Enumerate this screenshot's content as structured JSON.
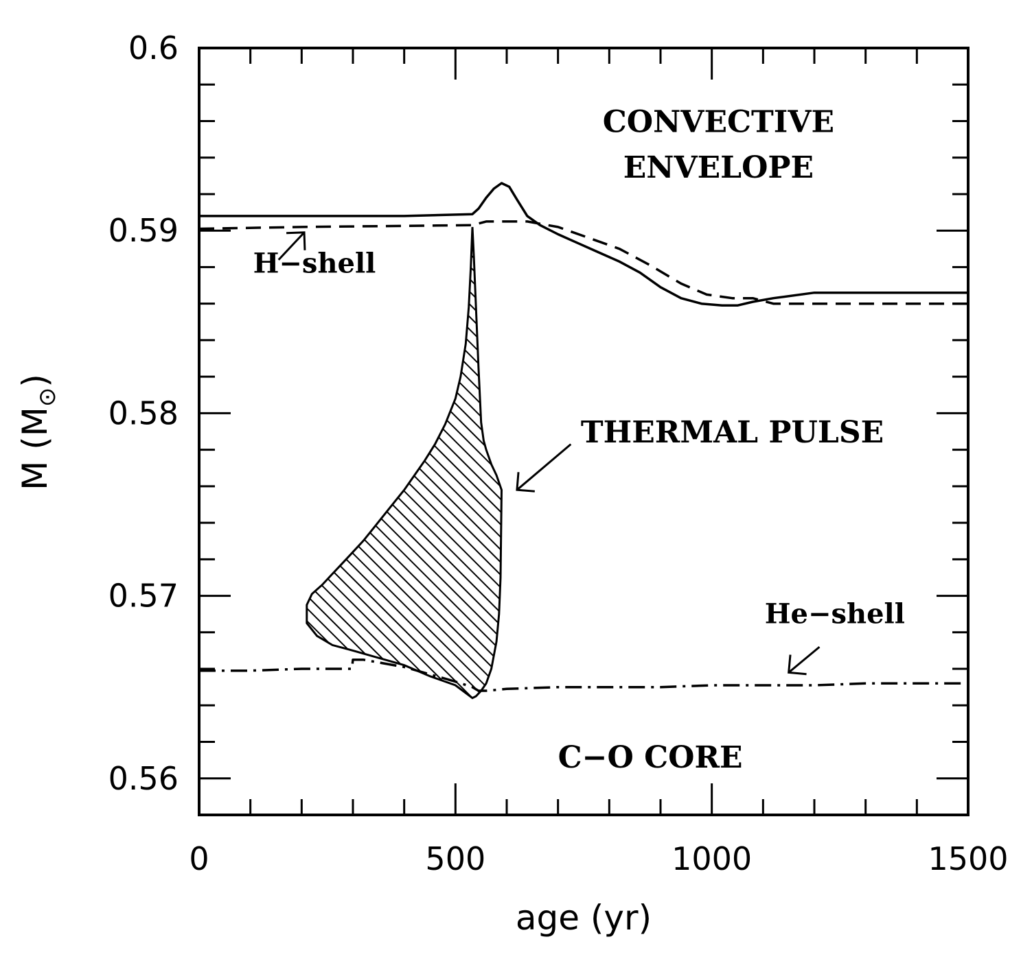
{
  "chart_data": {
    "type": "line",
    "title": "",
    "xlabel": "age (yr)",
    "ylabel_main": "M (M",
    "ylabel_close": ")",
    "ylabel_symbol": "⊙",
    "xlim": [
      0,
      1500
    ],
    "ylim": [
      0.558,
      0.6
    ],
    "x_ticks": [
      {
        "value": 0,
        "label": "0"
      },
      {
        "value": 500,
        "label": "500"
      },
      {
        "value": 1000,
        "label": "1000"
      },
      {
        "value": 1500,
        "label": "1500"
      }
    ],
    "y_ticks": [
      {
        "value": 0.56,
        "label": "0.56"
      },
      {
        "value": 0.57,
        "label": "0.57"
      },
      {
        "value": 0.58,
        "label": "0.58"
      },
      {
        "value": 0.59,
        "label": "0.59"
      },
      {
        "value": 0.6,
        "label": "0.6"
      }
    ],
    "x_minor_step": 100,
    "y_minor_step": 0.002,
    "grid": false,
    "series": [
      {
        "name": "convective envelope boundary",
        "style": "solid",
        "x": [
          0,
          200,
          400,
          533,
          545,
          560,
          575,
          590,
          605,
          620,
          640,
          665,
          700,
          740,
          780,
          820,
          860,
          900,
          940,
          980,
          1020,
          1050,
          1080,
          1120,
          1200,
          1300,
          1500
        ],
        "y": [
          0.5908,
          0.5908,
          0.5908,
          0.5909,
          0.5912,
          0.5918,
          0.5923,
          0.5926,
          0.5924,
          0.5917,
          0.5908,
          0.5903,
          0.5898,
          0.5893,
          0.5888,
          0.5883,
          0.5877,
          0.5869,
          0.5863,
          0.586,
          0.5859,
          0.5859,
          0.5861,
          0.5863,
          0.5866,
          0.5866,
          0.5866
        ]
      },
      {
        "name": "H-shell",
        "style": "dashed",
        "x": [
          0,
          200,
          533,
          560,
          640,
          700,
          760,
          820,
          880,
          940,
          990,
          1040,
          1080,
          1120,
          1300,
          1500
        ],
        "y": [
          0.5901,
          0.5902,
          0.5903,
          0.5905,
          0.5905,
          0.5902,
          0.5896,
          0.589,
          0.5881,
          0.5871,
          0.5865,
          0.5863,
          0.5863,
          0.586,
          0.586,
          0.586
        ]
      },
      {
        "name": "He-shell",
        "style": "dashdot",
        "x": [
          0,
          100,
          200,
          298,
          300,
          320,
          400,
          450,
          500,
          533,
          545,
          560,
          600,
          700,
          800,
          900,
          1000,
          1100,
          1200,
          1300,
          1500
        ],
        "y": [
          0.5659,
          0.5659,
          0.566,
          0.566,
          0.5665,
          0.5665,
          0.5661,
          0.5657,
          0.5653,
          0.565,
          0.5648,
          0.5648,
          0.5649,
          0.565,
          0.565,
          0.565,
          0.5651,
          0.5651,
          0.5651,
          0.5652,
          0.5652
        ]
      }
    ],
    "shaded_region": {
      "name": "thermal pulse convective zone",
      "fill": "hatched",
      "upper_x": [
        210,
        220,
        240,
        260,
        280,
        300,
        320,
        340,
        360,
        380,
        400,
        420,
        440,
        460,
        480,
        500,
        510,
        520,
        526,
        530,
        533,
        536,
        540,
        545,
        550,
        555,
        560,
        570,
        580,
        590
      ],
      "upper_y": [
        0.5695,
        0.5701,
        0.5706,
        0.5712,
        0.5718,
        0.5724,
        0.573,
        0.5737,
        0.5744,
        0.5751,
        0.5758,
        0.5766,
        0.5774,
        0.5783,
        0.5794,
        0.5808,
        0.582,
        0.5838,
        0.5858,
        0.588,
        0.5902,
        0.5885,
        0.5858,
        0.5825,
        0.5795,
        0.5785,
        0.578,
        0.5772,
        0.5766,
        0.5758
      ],
      "lower_x": [
        590,
        588,
        585,
        580,
        570,
        560,
        550,
        540,
        533,
        500,
        450,
        400,
        350,
        300,
        260,
        230,
        210
      ],
      "lower_y": [
        0.5758,
        0.571,
        0.569,
        0.5675,
        0.566,
        0.5652,
        0.5648,
        0.5645,
        0.5644,
        0.5651,
        0.5656,
        0.5662,
        0.5666,
        0.567,
        0.5673,
        0.5678,
        0.5685
      ]
    },
    "annotations": [
      {
        "text": "CONVECTIVE",
        "x": 1013,
        "y": 0.5954,
        "anchor": "middle"
      },
      {
        "text": "ENVELOPE",
        "x": 1013,
        "y": 0.5929,
        "anchor": "middle"
      },
      {
        "text": "H−shell",
        "x": 225,
        "y": 0.5877,
        "anchor": "middle"
      },
      {
        "text": "THERMAL PULSE",
        "x": 1040,
        "y": 0.5784,
        "anchor": "middle"
      },
      {
        "text": "He−shell",
        "x": 1240,
        "y": 0.5685,
        "anchor": "middle"
      },
      {
        "text": "C−O CORE",
        "x": 880,
        "y": 0.5606,
        "anchor": "middle"
      }
    ],
    "arrows": [
      {
        "from_x": 155,
        "from_y": 0.5884,
        "to_x": 205,
        "to_y": 0.5899
      },
      {
        "from_x": 725,
        "from_y": 0.5783,
        "to_x": 620,
        "to_y": 0.5758
      },
      {
        "from_x": 1210,
        "from_y": 0.5672,
        "to_x": 1150,
        "to_y": 0.5658
      }
    ]
  }
}
